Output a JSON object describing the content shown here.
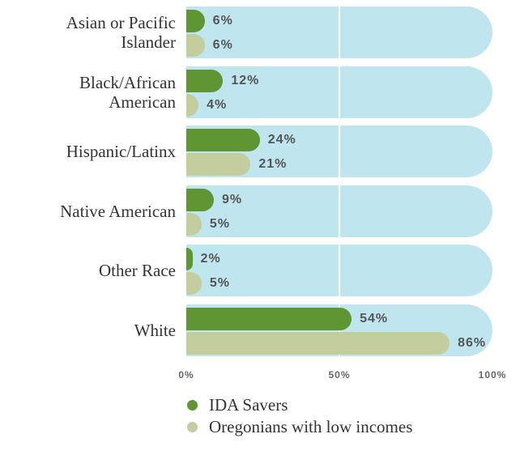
{
  "chart_data": {
    "type": "bar",
    "orientation": "horizontal",
    "categories": [
      "Asian or Pacific Islander",
      "Black/African American",
      "Hispanic/Latinx",
      "Native American",
      "Other Race",
      "White"
    ],
    "series": [
      {
        "name": "IDA Savers",
        "color": "#5f9633",
        "values": [
          6,
          12,
          24,
          9,
          2,
          54
        ],
        "value_labels": [
          "6%",
          "12%",
          "24%",
          "9%",
          "2%",
          "54%"
        ]
      },
      {
        "name": "Oregonians with low incomes",
        "color": "#c3cd9e",
        "values": [
          6,
          4,
          21,
          5,
          5,
          86
        ],
        "value_labels": [
          "6%",
          "4%",
          "21%",
          "5%",
          "5%",
          "86%"
        ]
      }
    ],
    "xlim": [
      0,
      100
    ],
    "xticks": [
      {
        "value": 0,
        "label": "0%"
      },
      {
        "value": 50,
        "label": "50%"
      },
      {
        "value": 100,
        "label": "100%"
      }
    ],
    "background_color": "#bfe5ee",
    "grid": true,
    "legend": "bottom"
  }
}
